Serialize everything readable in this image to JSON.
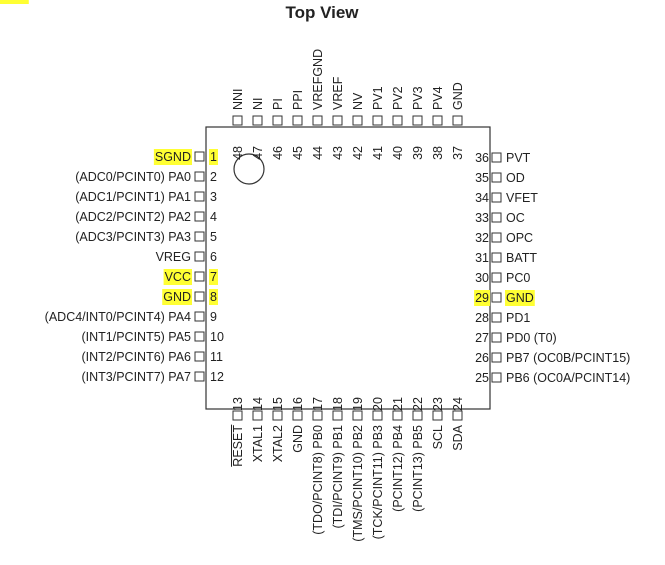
{
  "title": "Top View",
  "colors": {
    "highlight": "#ffff33",
    "ink": "#222222",
    "line": "#333333"
  },
  "pins": {
    "left": [
      {
        "num": "1",
        "label": "SGND",
        "hl_label": true,
        "hl_num": true
      },
      {
        "num": "2",
        "label": "(ADC0/PCINT0) PA0"
      },
      {
        "num": "3",
        "label": "(ADC1/PCINT1) PA1"
      },
      {
        "num": "4",
        "label": "(ADC2/PCINT2) PA2"
      },
      {
        "num": "5",
        "label": "(ADC3/PCINT3) PA3"
      },
      {
        "num": "6",
        "label": "VREG"
      },
      {
        "num": "7",
        "label": "VCC",
        "hl_label": true,
        "hl_num": true
      },
      {
        "num": "8",
        "label": "GND",
        "hl_label": true,
        "hl_num": true
      },
      {
        "num": "9",
        "label": "(ADC4/INT0/PCINT4) PA4"
      },
      {
        "num": "10",
        "label": "(INT1/PCINT5) PA5"
      },
      {
        "num": "11",
        "label": "(INT2/PCINT6) PA6"
      },
      {
        "num": "12",
        "label": "(INT3/PCINT7) PA7"
      }
    ],
    "bottom": [
      {
        "num": "13",
        "label": "RESET",
        "overbar": true,
        "hl_num": true
      },
      {
        "num": "14",
        "label": "XTAL1"
      },
      {
        "num": "15",
        "label": "XTAL2"
      },
      {
        "num": "16",
        "label": "GND"
      },
      {
        "num": "17",
        "label": "(TDO/PCINT8) PB0"
      },
      {
        "num": "18",
        "label": "(TDI/PCINT9) PB1"
      },
      {
        "num": "19",
        "label": "(TMS/PCINT10) PB2"
      },
      {
        "num": "20",
        "label": "(TCK/PCINT11) PB3"
      },
      {
        "num": "21",
        "label": "(PCINT12) PB4"
      },
      {
        "num": "22",
        "label": "(PCINT13) PB5"
      },
      {
        "num": "23",
        "label": "SCL"
      },
      {
        "num": "24",
        "label": "SDA"
      }
    ],
    "right": [
      {
        "num": "25",
        "label": "PB6 (OC0A/PCINT14)"
      },
      {
        "num": "26",
        "label": "PB7 (OC0B/PCINT15)"
      },
      {
        "num": "27",
        "label": "PD0 (T0)"
      },
      {
        "num": "28",
        "label": "PD1"
      },
      {
        "num": "29",
        "label": "GND",
        "hl_label": true,
        "hl_num": true
      },
      {
        "num": "30",
        "label": "PC0"
      },
      {
        "num": "31",
        "label": "BATT"
      },
      {
        "num": "32",
        "label": "OPC"
      },
      {
        "num": "33",
        "label": "OC"
      },
      {
        "num": "34",
        "label": "VFET"
      },
      {
        "num": "35",
        "label": "OD"
      },
      {
        "num": "36",
        "label": "PVT"
      }
    ],
    "top": [
      {
        "num": "37",
        "label": "GND",
        "hl_label": true,
        "hl_num": true
      },
      {
        "num": "38",
        "label": "PV4"
      },
      {
        "num": "39",
        "label": "PV3"
      },
      {
        "num": "40",
        "label": "PV2"
      },
      {
        "num": "41",
        "label": "PV1"
      },
      {
        "num": "42",
        "label": "NV"
      },
      {
        "num": "43",
        "label": "VREF"
      },
      {
        "num": "44",
        "label": "VREFGND"
      },
      {
        "num": "45",
        "label": "PPI"
      },
      {
        "num": "46",
        "label": "PI"
      },
      {
        "num": "47",
        "label": "NI"
      },
      {
        "num": "48",
        "label": "NNI"
      }
    ]
  }
}
